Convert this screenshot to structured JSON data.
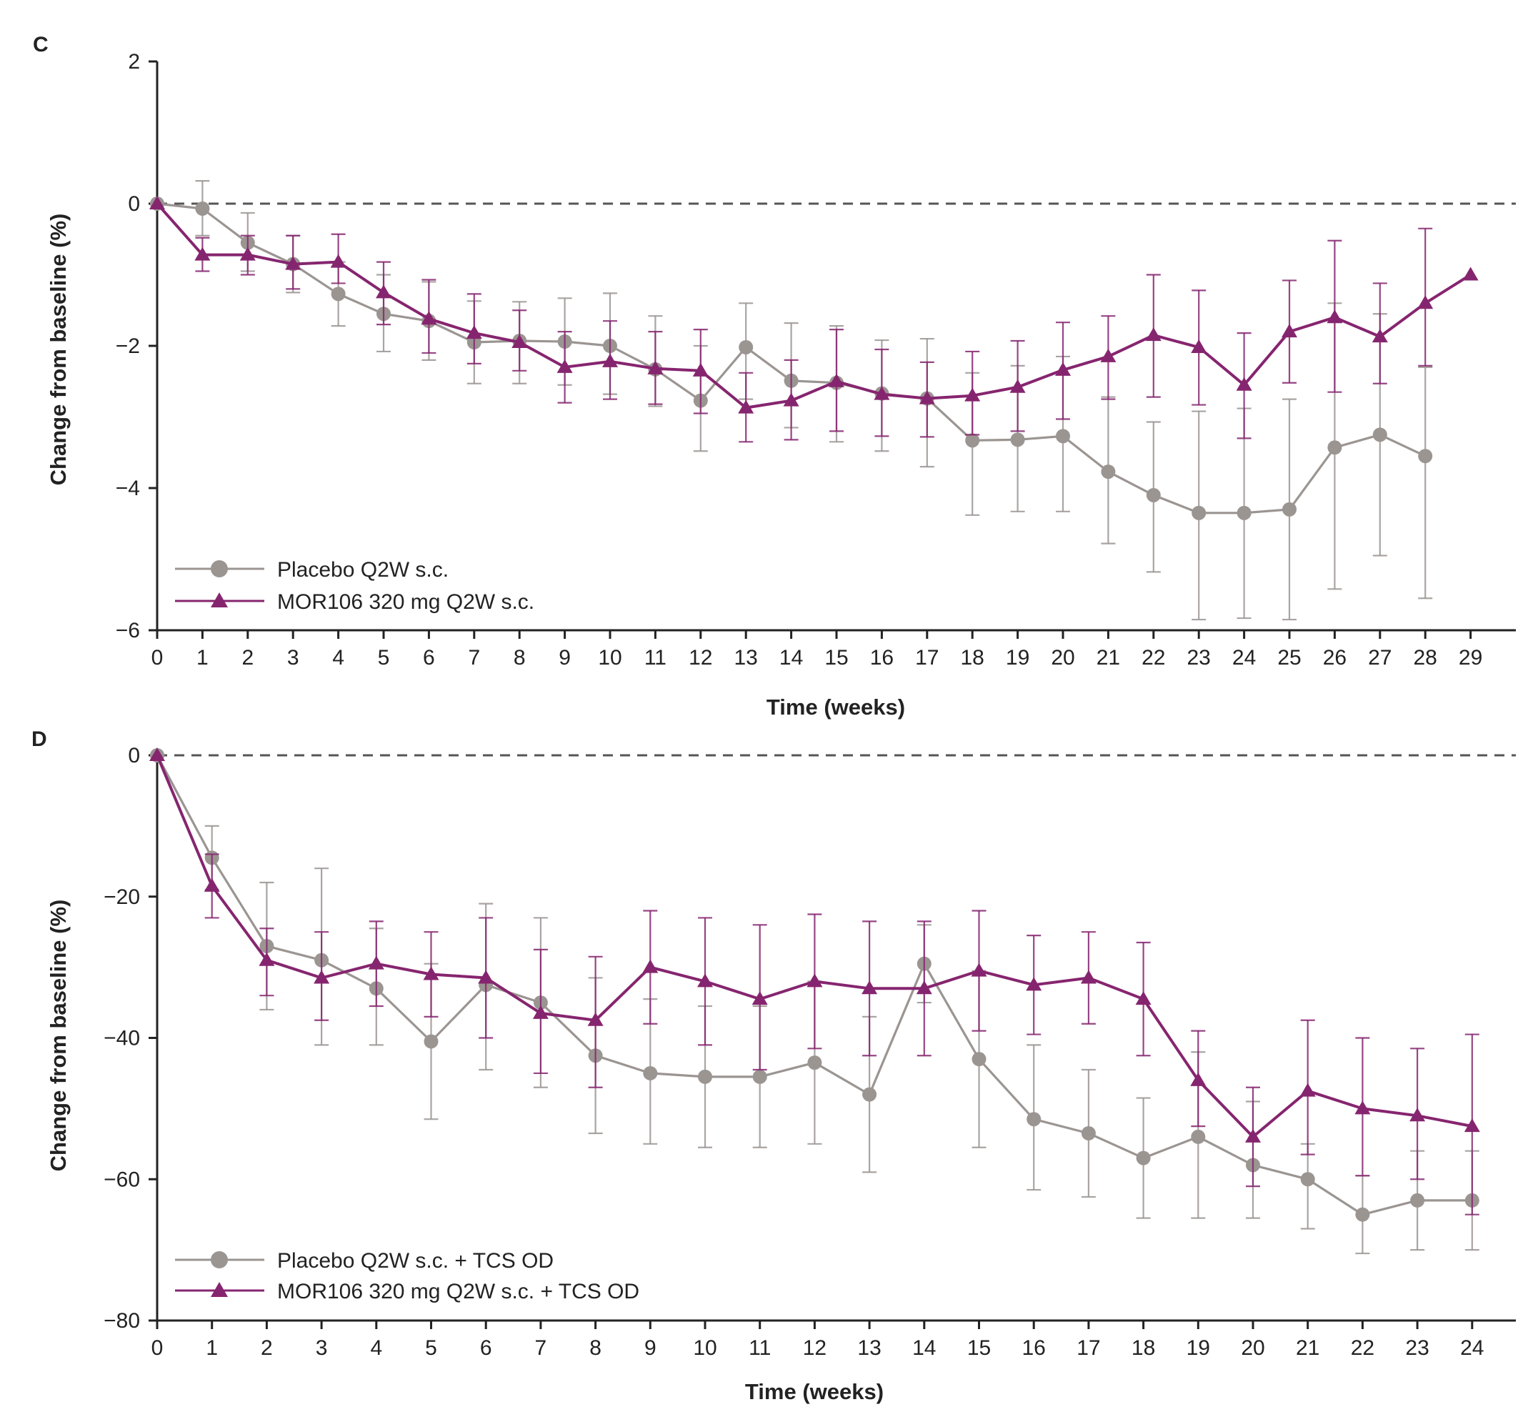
{
  "colors": {
    "placebo": "#9b9592",
    "active": "#86256f",
    "axis": "#222222",
    "refline": "#555555"
  },
  "chart_data": [
    {
      "panel": "C",
      "type": "line",
      "xlabel": "Time (weeks)",
      "ylabel": "Change from baseline (%)",
      "xlim": [
        0,
        30
      ],
      "ylim": [
        -6,
        2
      ],
      "xticks": [
        0,
        1,
        2,
        3,
        4,
        5,
        6,
        7,
        8,
        9,
        10,
        11,
        12,
        13,
        14,
        15,
        16,
        17,
        18,
        19,
        20,
        21,
        22,
        23,
        24,
        25,
        26,
        27,
        28,
        29
      ],
      "yticks": [
        2,
        0,
        -2,
        -4,
        -6
      ],
      "reference_line": 0,
      "legend_position": "bottom-left",
      "series": [
        {
          "name": "Placebo Q2W s.c.",
          "color_key": "placebo",
          "marker": "circle",
          "x": [
            0,
            1,
            2,
            3,
            4,
            5,
            6,
            7,
            8,
            9,
            10,
            11,
            12,
            13,
            14,
            15,
            16,
            17,
            18,
            19,
            20,
            21,
            22,
            23,
            24,
            25,
            26,
            27,
            28
          ],
          "values": [
            0,
            -0.07,
            -0.55,
            -0.85,
            -1.27,
            -1.55,
            -1.65,
            -1.95,
            -1.93,
            -1.94,
            -2.0,
            -2.33,
            -2.77,
            -2.02,
            -2.49,
            -2.52,
            -2.67,
            -2.74,
            -3.33,
            -3.32,
            -3.27,
            -3.77,
            -4.1,
            -4.35,
            -4.35,
            -4.3,
            -3.43,
            -3.25,
            -3.55
          ],
          "err_low": [
            0,
            -0.45,
            -0.95,
            -1.25,
            -1.72,
            -2.08,
            -2.2,
            -2.53,
            -2.53,
            -2.55,
            -2.68,
            -2.85,
            -3.48,
            -2.75,
            -3.15,
            -3.35,
            -3.48,
            -3.7,
            -4.38,
            -4.33,
            -4.33,
            -4.78,
            -5.18,
            -5.85,
            -5.83,
            -5.85,
            -5.42,
            -4.95,
            -5.55
          ],
          "err_high": [
            0,
            0.32,
            -0.13,
            -0.45,
            -0.82,
            -1.0,
            -1.1,
            -1.37,
            -1.38,
            -1.33,
            -1.26,
            -1.58,
            -2.0,
            -1.4,
            -1.68,
            -1.72,
            -1.92,
            -1.9,
            -2.38,
            -2.28,
            -2.15,
            -2.72,
            -3.07,
            -2.92,
            -2.88,
            -2.75,
            -1.4,
            -1.55,
            -2.3
          ]
        },
        {
          "name": "MOR106 320 mg Q2W s.c.",
          "color_key": "active",
          "marker": "triangle",
          "x": [
            0,
            1,
            2,
            3,
            4,
            5,
            6,
            7,
            8,
            9,
            10,
            11,
            12,
            13,
            14,
            15,
            16,
            17,
            18,
            19,
            20,
            21,
            22,
            23,
            24,
            25,
            26,
            27,
            28,
            29
          ],
          "values": [
            0,
            -0.72,
            -0.72,
            -0.85,
            -0.82,
            -1.25,
            -1.62,
            -1.82,
            -1.95,
            -2.3,
            -2.22,
            -2.32,
            -2.35,
            -2.87,
            -2.77,
            -2.5,
            -2.68,
            -2.74,
            -2.7,
            -2.58,
            -2.34,
            -2.15,
            -1.85,
            -2.02,
            -2.55,
            -1.8,
            -1.6,
            -1.87,
            -1.4,
            -1.0
          ],
          "err_low": [
            0,
            -0.95,
            -1.0,
            -1.2,
            -1.12,
            -1.7,
            -2.1,
            -2.25,
            -2.35,
            -2.8,
            -2.75,
            -2.82,
            -2.95,
            -3.35,
            -3.32,
            -3.2,
            -3.27,
            -3.28,
            -3.25,
            -3.2,
            -3.03,
            -2.75,
            -2.72,
            -2.83,
            -3.3,
            -2.52,
            -2.65,
            -2.53,
            -2.28,
            -1.0
          ],
          "err_high": [
            0,
            -0.48,
            -0.45,
            -0.45,
            -0.43,
            -0.82,
            -1.07,
            -1.27,
            -1.5,
            -1.8,
            -1.65,
            -1.8,
            -1.77,
            -2.38,
            -2.2,
            -1.77,
            -2.05,
            -2.23,
            -2.08,
            -1.93,
            -1.67,
            -1.58,
            -1.0,
            -1.22,
            -1.82,
            -1.08,
            -0.52,
            -1.12,
            -0.35,
            -1.0
          ]
        }
      ]
    },
    {
      "panel": "D",
      "type": "line",
      "xlabel": "Time (weeks)",
      "ylabel": "Change from baseline (%)",
      "xlim": [
        0,
        25
      ],
      "ylim": [
        -80,
        0
      ],
      "xticks": [
        0,
        1,
        2,
        3,
        4,
        5,
        6,
        7,
        8,
        9,
        10,
        11,
        12,
        13,
        14,
        15,
        16,
        17,
        18,
        19,
        20,
        21,
        22,
        23,
        24
      ],
      "yticks": [
        0,
        -20,
        -40,
        -60,
        -80
      ],
      "reference_line": 0,
      "legend_position": "bottom-left",
      "series": [
        {
          "name": "Placebo Q2W s.c. + TCS OD",
          "color_key": "placebo",
          "marker": "circle",
          "x": [
            0,
            1,
            2,
            3,
            4,
            5,
            6,
            7,
            8,
            9,
            10,
            11,
            12,
            13,
            14,
            15,
            16,
            17,
            18,
            19,
            20,
            21,
            22,
            23,
            24
          ],
          "values": [
            0,
            -14.5,
            -27,
            -29,
            -33,
            -40.5,
            -32.5,
            -35,
            -42.5,
            -45,
            -45.5,
            -45.5,
            -43.5,
            -48,
            -29.5,
            -43,
            -51.5,
            -53.5,
            -57,
            -54,
            -58,
            -60,
            -65,
            -63,
            -63
          ],
          "err_low": [
            0,
            -19,
            -36,
            -41,
            -41,
            -51.5,
            -44.5,
            -47,
            -53.5,
            -55,
            -55.5,
            -55.5,
            -55,
            -59,
            -35,
            -55.5,
            -61.5,
            -62.5,
            -65.5,
            -65.5,
            -65.5,
            -67,
            -70.5,
            -70,
            -70
          ],
          "err_high": [
            0,
            -10,
            -18,
            -16,
            -24.5,
            -29.5,
            -21,
            -23,
            -31.5,
            -34.5,
            -35.5,
            -35.5,
            -32,
            -37,
            -24,
            -30.5,
            -41,
            -44.5,
            -48.5,
            -42,
            -49,
            -55,
            -59.5,
            -56,
            -56
          ]
        },
        {
          "name": "MOR106 320 mg Q2W s.c. + TCS OD",
          "color_key": "active",
          "marker": "triangle",
          "x": [
            0,
            1,
            2,
            3,
            4,
            5,
            6,
            7,
            8,
            9,
            10,
            11,
            12,
            13,
            14,
            15,
            16,
            17,
            18,
            19,
            20,
            21,
            22,
            23,
            24
          ],
          "values": [
            0,
            -18.5,
            -29,
            -31.5,
            -29.5,
            -31,
            -31.5,
            -36.5,
            -37.5,
            -30,
            -32,
            -34.5,
            -32,
            -33,
            -33,
            -30.5,
            -32.5,
            -31.5,
            -34.5,
            -46,
            -54,
            -47.5,
            -50,
            -51,
            -52.5
          ],
          "err_low": [
            0,
            -23,
            -34,
            -37.5,
            -35.5,
            -37,
            -40,
            -45,
            -47,
            -38,
            -41,
            -44.5,
            -41.5,
            -42.5,
            -42.5,
            -39,
            -39.5,
            -38,
            -42.5,
            -52.5,
            -61,
            -56.5,
            -59.5,
            -60,
            -65
          ],
          "err_high": [
            0,
            -14,
            -24.5,
            -25,
            -23.5,
            -25,
            -23,
            -27.5,
            -28.5,
            -22,
            -23,
            -24,
            -22.5,
            -23.5,
            -23.5,
            -22,
            -25.5,
            -25,
            -26.5,
            -39,
            -47,
            -37.5,
            -40,
            -41.5,
            -39.5
          ]
        }
      ]
    }
  ]
}
